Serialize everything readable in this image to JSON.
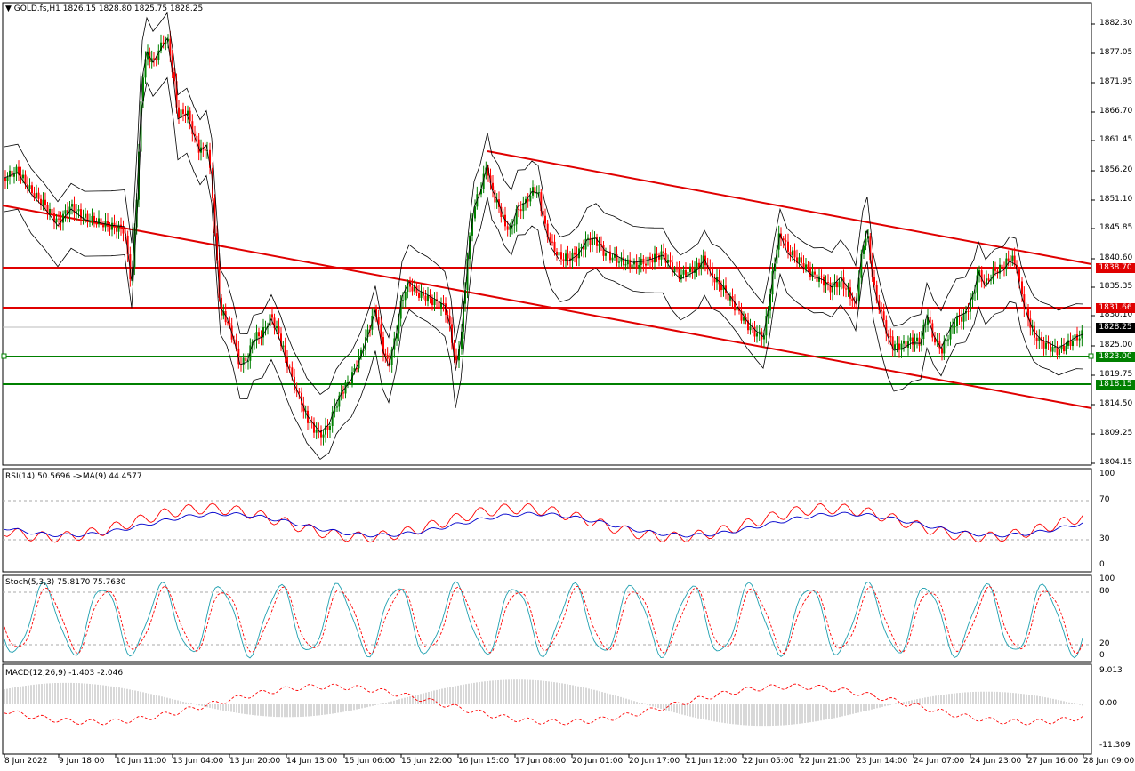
{
  "main": {
    "title": "GOLD.fs,H1",
    "ohlc": "1826.15 1828.80 1825.75 1828.25",
    "price_ticks": [
      "1882.30",
      "1877.05",
      "1871.95",
      "1866.70",
      "1861.45",
      "1856.20",
      "1851.10",
      "1845.85",
      "1840.60",
      "1835.35",
      "1830.10",
      "1825.00",
      "1819.75",
      "1814.50",
      "1809.25",
      "1804.15"
    ],
    "level_tags": [
      {
        "label": "1838.70",
        "color": "#e00000"
      },
      {
        "label": "1831.66",
        "color": "#e00000"
      },
      {
        "label": "1828.25",
        "color": "#000000"
      },
      {
        "label": "1823.00",
        "color": "#008000"
      },
      {
        "label": "1818.15",
        "color": "#008000"
      }
    ],
    "up_color": "#008000",
    "down_color": "#ff0000"
  },
  "rsi": {
    "label": "RSI(14) 50.5696  ->MA(9) 44.4577",
    "ticks": [
      "100",
      "70",
      "30",
      "0"
    ],
    "rsi_color": "#ff0000",
    "ma_color": "#0000cc"
  },
  "stoch": {
    "label": "Stoch(5,3,3) 75.8170 75.7630",
    "ticks": [
      "100",
      "80",
      "20",
      "0"
    ],
    "main_color": "#20a0b0",
    "signal_color": "#ff0000"
  },
  "macd": {
    "label": "MACD(12,26,9) -1.403 -2.046",
    "ticks": [
      "9.013",
      "0.00",
      "-11.309"
    ]
  },
  "time_axis": [
    "8 Jun 2022",
    "9 Jun 18:00",
    "10 Jun 11:00",
    "13 Jun 04:00",
    "13 Jun 20:00",
    "14 Jun 13:00",
    "15 Jun 06:00",
    "15 Jun 22:00",
    "16 Jun 15:00",
    "17 Jun 08:00",
    "20 Jun 01:00",
    "20 Jun 17:00",
    "21 Jun 12:00",
    "22 Jun 05:00",
    "22 Jun 21:00",
    "23 Jun 14:00",
    "24 Jun 07:00",
    "24 Jun 23:00",
    "27 Jun 16:00",
    "28 Jun 09:00"
  ]
}
